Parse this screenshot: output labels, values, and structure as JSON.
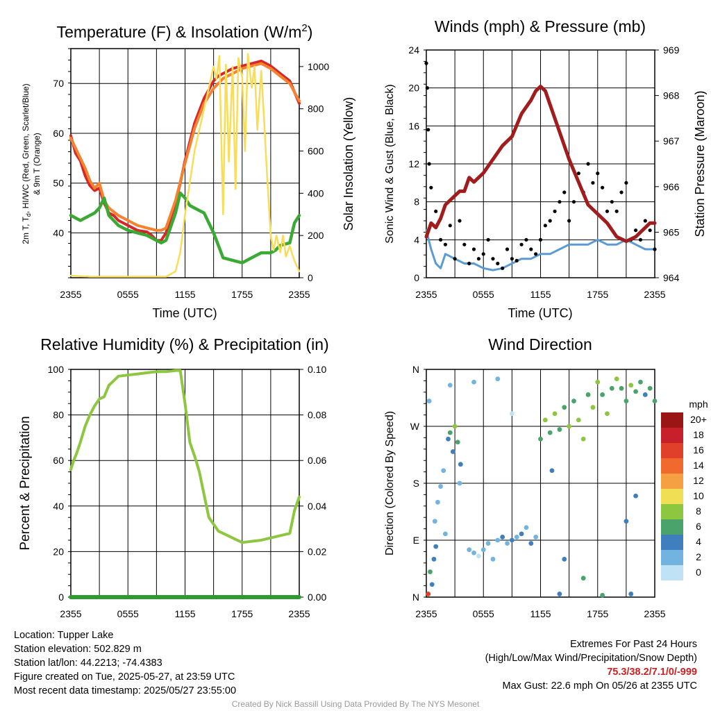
{
  "colors": {
    "red": "#d62728",
    "green": "#3aaa35",
    "orange": "#f4822e",
    "yellow": "#f7dd58",
    "blue": "#5b9bd5",
    "black": "#000000",
    "maroon": "#a11c1c",
    "rh": "#8dc63f",
    "precip": "#2e9b2e",
    "grid": "#000000"
  },
  "chart_data": [
    {
      "id": "temp",
      "type": "line",
      "title_main": "Temperature (F) & Insolation (W/m",
      "title_sup": "2",
      "title_close": ")",
      "xlabel": "Time (UTC)",
      "ylabel_lines": [
        "2m T, T",
        "d",
        ", HI/WC (Red, Green, Scarlet/Blue)",
        "& 9m T (Orange)"
      ],
      "y2label": "Solar Insolation (Yellow)",
      "xticks": [
        "2355",
        "0555",
        "1155",
        "1755",
        "2355"
      ],
      "xlim": [
        0,
        24
      ],
      "ylim": [
        31,
        77
      ],
      "y2lim": [
        0,
        1085
      ],
      "yticks": [
        40,
        50,
        60,
        70
      ],
      "y2ticks": [
        0,
        200,
        400,
        600,
        800,
        1000
      ],
      "grid": true,
      "series": [
        {
          "key": "temp_2m",
          "color": "red",
          "x": [
            0,
            0.5,
            1,
            1.5,
            2,
            2.5,
            3,
            3.5,
            4,
            4.5,
            5,
            6,
            7,
            8,
            8.5,
            9,
            9.5,
            10,
            11,
            11.5,
            12,
            13,
            14,
            15,
            15.5,
            16,
            17,
            18,
            19,
            20,
            21,
            22,
            23,
            24
          ],
          "y": [
            59.5,
            56,
            54.5,
            51.5,
            49.5,
            48.5,
            49,
            46,
            44,
            43.5,
            42.5,
            41.5,
            40.5,
            40.2,
            39.5,
            38.5,
            38.5,
            40,
            46,
            50,
            54.5,
            62,
            67,
            70.5,
            71.5,
            72,
            73,
            73.5,
            74,
            74.5,
            73.5,
            72,
            70.5,
            66
          ]
        },
        {
          "key": "temp_9m",
          "color": "orange",
          "x": [
            0,
            0.5,
            1,
            1.5,
            2,
            2.5,
            3,
            3.5,
            4,
            5,
            6,
            7,
            8,
            9,
            9.5,
            10,
            11,
            12,
            13,
            14,
            15,
            16,
            17,
            18,
            19,
            20,
            21,
            22,
            23,
            24
          ],
          "y": [
            59,
            57,
            55,
            53,
            50.5,
            49,
            50,
            46.5,
            45,
            43.5,
            42.5,
            41.5,
            41,
            40.5,
            40.5,
            41,
            46.5,
            54,
            61,
            66,
            69,
            71,
            72,
            73,
            73.5,
            74,
            73,
            71.5,
            70,
            66.5
          ]
        },
        {
          "key": "dewpoint",
          "color": "green",
          "x": [
            0,
            1,
            1.5,
            2,
            2.5,
            3,
            3.5,
            4,
            5,
            6,
            7,
            8,
            9,
            9.5,
            10,
            11,
            11.5,
            12,
            12.5,
            13,
            14,
            14.5,
            15,
            15.5,
            16,
            17,
            18,
            19,
            20,
            21,
            21.5,
            22,
            23,
            23.5,
            24
          ],
          "y": [
            43.5,
            42.5,
            43,
            43.5,
            44,
            45,
            47,
            43.5,
            41.5,
            40.5,
            40,
            39.5,
            38.5,
            38,
            38.5,
            44,
            48,
            47,
            45.5,
            45,
            44,
            42,
            40,
            37.5,
            35,
            34.5,
            34,
            35,
            36,
            36,
            36.5,
            37.5,
            38,
            42,
            43.5
          ]
        },
        {
          "key": "solar",
          "color": "yellow",
          "axis": "y2",
          "x": [
            0,
            2,
            4,
            6,
            8,
            9,
            10,
            11,
            11.5,
            12,
            13,
            14,
            14.5,
            15,
            15.3,
            15.6,
            16,
            16.3,
            16.6,
            17,
            17.3,
            17.6,
            18,
            18.3,
            18.6,
            19,
            19.3,
            19.6,
            20,
            20.3,
            20.6,
            21,
            21.3,
            21.6,
            22,
            22.3,
            22.6,
            23,
            23.5,
            24
          ],
          "y": [
            10,
            5,
            5,
            5,
            5,
            5,
            5,
            30,
            120,
            300,
            600,
            800,
            900,
            1000,
            940,
            1050,
            300,
            1010,
            550,
            1000,
            420,
            1040,
            950,
            600,
            1060,
            900,
            1000,
            700,
            980,
            750,
            500,
            200,
            130,
            200,
            120,
            200,
            100,
            150,
            80,
            30
          ]
        }
      ]
    },
    {
      "id": "wind",
      "type": "scatter",
      "title": "Winds (mph) & Pressure (mb)",
      "xlabel": "Time (UTC)",
      "ylabel": "Sonic Wind & Gust (Blue, Black)",
      "y2label": "Station Pressure (Maroon)",
      "xticks": [
        "2355",
        "0555",
        "1155",
        "1755",
        "2355"
      ],
      "xlim": [
        0,
        24
      ],
      "ylim": [
        0,
        24
      ],
      "y2lim": [
        964,
        969
      ],
      "yticks": [
        0,
        4,
        8,
        12,
        16,
        20,
        24
      ],
      "y2ticks": [
        964,
        965,
        966,
        967,
        968,
        969
      ],
      "grid": true,
      "series": [
        {
          "key": "sonic_wind",
          "color": "blue",
          "x": [
            0,
            0.5,
            1,
            1.5,
            2,
            3,
            4,
            5,
            6,
            7,
            8,
            9,
            10,
            11,
            12,
            13,
            14,
            15,
            16,
            17,
            18,
            19,
            20,
            21,
            22,
            23,
            24
          ],
          "y": [
            5,
            3,
            1.5,
            1,
            2.5,
            2,
            1.5,
            1.5,
            1,
            0.8,
            1,
            1.5,
            2,
            2,
            2.5,
            2.5,
            3,
            3.5,
            3.5,
            3.5,
            4,
            3.5,
            3.5,
            4,
            3.5,
            3,
            3
          ]
        },
        {
          "key": "gust",
          "color": "black",
          "x": [
            0,
            0.1,
            0.2,
            0.3,
            0.5,
            1,
            1.5,
            2,
            2.5,
            3,
            3.5,
            4,
            4.5,
            5,
            5.5,
            6,
            6.5,
            7,
            7.5,
            8,
            8.5,
            9,
            9.5,
            10,
            10.5,
            11,
            11.5,
            12,
            12.5,
            13,
            13.5,
            14,
            14.5,
            15,
            15.5,
            16,
            16.5,
            17,
            17.5,
            18,
            18.5,
            19,
            19.5,
            20,
            20.5,
            21,
            21.5,
            22,
            22.5,
            23,
            23.5,
            24
          ],
          "y": [
            22.6,
            20,
            15.6,
            12,
            9.5,
            7,
            4,
            3.5,
            5.5,
            2,
            6,
            3.5,
            1.5,
            3,
            2,
            2.5,
            4,
            2,
            1.5,
            1,
            3,
            2,
            1.8,
            3.5,
            4,
            3,
            2.5,
            4,
            5.5,
            6,
            7,
            8,
            9,
            6,
            8,
            11,
            9,
            12,
            10,
            11,
            9.5,
            7,
            8,
            7,
            9,
            10,
            4,
            5,
            4,
            6,
            5,
            3
          ]
        },
        {
          "key": "pressure",
          "color": "maroon",
          "axis": "y2",
          "x": [
            0,
            0.5,
            1,
            1.5,
            2,
            3,
            3.5,
            4,
            4.5,
            5,
            6,
            7,
            8,
            9,
            10,
            11,
            11.5,
            12,
            12.5,
            13,
            14,
            15,
            16,
            17,
            18,
            19,
            20,
            21,
            22,
            23,
            23.5,
            24
          ],
          "y": [
            964.9,
            965.2,
            965.1,
            965.3,
            965.6,
            965.8,
            965.9,
            965.9,
            966.2,
            966.1,
            966.3,
            966.6,
            966.9,
            967.1,
            967.6,
            967.9,
            968.1,
            968.2,
            968.1,
            967.8,
            967.2,
            966.6,
            966.1,
            965.6,
            965.4,
            965.2,
            964.9,
            964.8,
            964.9,
            965.1,
            965.2,
            965.2
          ]
        }
      ]
    },
    {
      "id": "rh",
      "type": "line",
      "title": "Relative Humidity (%) & Precipitation (in)",
      "ylabel": "Percent & Precipitation",
      "xticks": [
        "2355",
        "0555",
        "1155",
        "1755",
        "2355"
      ],
      "xlim": [
        0,
        24
      ],
      "ylim": [
        0,
        100
      ],
      "y2lim": [
        0,
        0.1
      ],
      "yticks": [
        0,
        20,
        40,
        60,
        80,
        100
      ],
      "y2ticks": [
        "0.00",
        "0.02",
        "0.04",
        "0.06",
        "0.08",
        "0.10"
      ],
      "grid": true,
      "series": [
        {
          "key": "rh",
          "color": "rh",
          "x": [
            0,
            0.3,
            0.6,
            1,
            1.5,
            2,
            2.5,
            3,
            3.5,
            4,
            4.5,
            5,
            6,
            7,
            8,
            9,
            10,
            11,
            11.5,
            12,
            12.5,
            13,
            13.5,
            14,
            14.5,
            15,
            15.5,
            16,
            17,
            18,
            19,
            20,
            21,
            22,
            23,
            23.5,
            24
          ],
          "y": [
            56,
            60,
            63,
            68,
            75,
            80,
            84,
            87,
            88,
            93,
            95,
            97,
            97.5,
            98,
            98.5,
            99,
            99,
            99.5,
            99.5,
            85,
            68,
            62,
            55,
            45,
            35,
            32,
            29,
            28,
            26,
            24,
            24.5,
            25,
            26,
            27,
            28,
            38,
            44
          ]
        },
        {
          "key": "precip",
          "color": "precip",
          "x": [
            0,
            24
          ],
          "y": [
            0,
            0
          ]
        }
      ]
    },
    {
      "id": "wdir",
      "type": "scatter",
      "title": "Wind Direction",
      "ylabel": "Direction (Colored By Speed)",
      "xticks": [
        "2355",
        "0555",
        "1155",
        "1755",
        "2355"
      ],
      "xlim": [
        0,
        24
      ],
      "ylim": [
        0,
        360
      ],
      "ytick_values": [
        0,
        90,
        180,
        270,
        360
      ],
      "yticks": [
        "N",
        "E",
        "S",
        "W",
        "N"
      ],
      "grid": true,
      "points": [
        [
          0.2,
          5,
          8
        ],
        [
          0.4,
          40,
          3
        ],
        [
          0.6,
          20,
          2
        ],
        [
          0.8,
          60,
          2
        ],
        [
          1,
          80,
          2
        ],
        [
          0.9,
          120,
          1
        ],
        [
          1.2,
          150,
          1
        ],
        [
          1.5,
          175,
          1
        ],
        [
          2,
          100,
          1
        ],
        [
          2.3,
          250,
          2
        ],
        [
          2.5,
          260,
          3
        ],
        [
          2.8,
          230,
          2
        ],
        [
          3,
          270,
          4
        ],
        [
          3.3,
          245,
          3
        ],
        [
          3.6,
          210,
          2
        ],
        [
          3.5,
          180,
          1
        ],
        [
          1.8,
          200,
          1
        ],
        [
          4.5,
          75,
          1
        ],
        [
          5,
          70,
          1
        ],
        [
          5.5,
          65,
          0
        ],
        [
          6,
          75,
          1
        ],
        [
          6.5,
          85,
          1
        ],
        [
          7,
          60,
          1
        ],
        [
          7.5,
          90,
          1
        ],
        [
          8,
          95,
          2
        ],
        [
          8.5,
          85,
          1
        ],
        [
          9,
          90,
          2
        ],
        [
          9.5,
          95,
          1
        ],
        [
          10,
          100,
          2
        ],
        [
          10.5,
          110,
          1
        ],
        [
          11,
          85,
          2
        ],
        [
          11.5,
          95,
          1
        ],
        [
          12,
          250,
          3
        ],
        [
          12.5,
          280,
          4
        ],
        [
          13,
          260,
          3
        ],
        [
          13.2,
          200,
          2
        ],
        [
          13.5,
          290,
          4
        ],
        [
          14,
          265,
          3
        ],
        [
          14.5,
          300,
          3
        ],
        [
          15,
          270,
          4
        ],
        [
          15.5,
          310,
          3
        ],
        [
          16,
          280,
          4
        ],
        [
          16.5,
          250,
          4
        ],
        [
          17,
          320,
          3
        ],
        [
          17.5,
          300,
          4
        ],
        [
          18,
          340,
          4
        ],
        [
          18.5,
          320,
          3
        ],
        [
          19,
          290,
          4
        ],
        [
          19.5,
          330,
          3
        ],
        [
          20,
          345,
          4
        ],
        [
          20.5,
          330,
          3
        ],
        [
          21,
          310,
          3
        ],
        [
          21.5,
          335,
          4
        ],
        [
          22,
          325,
          3
        ],
        [
          22.5,
          340,
          3
        ],
        [
          23,
          320,
          2
        ],
        [
          23.5,
          330,
          3
        ],
        [
          24,
          310,
          3
        ],
        [
          5,
          340,
          1
        ],
        [
          7.5,
          345,
          1
        ],
        [
          9,
          290,
          0
        ],
        [
          14,
          5,
          2
        ],
        [
          18.5,
          3,
          3
        ],
        [
          21.5,
          5,
          2
        ],
        [
          21,
          120,
          2
        ],
        [
          22,
          160,
          2
        ],
        [
          0.3,
          310,
          1
        ],
        [
          2.5,
          335,
          1
        ],
        [
          14.5,
          60,
          2
        ],
        [
          16.5,
          30,
          3
        ]
      ],
      "legend": {
        "title": "mph",
        "labels": [
          "20+",
          "18",
          "16",
          "14",
          "12",
          "10",
          "8",
          "6",
          "4",
          "2",
          "0"
        ],
        "colors": [
          "#9b1515",
          "#c8202a",
          "#e0402a",
          "#ef6a2c",
          "#f6a044",
          "#f0df55",
          "#8dc63f",
          "#4aa36a",
          "#3f7fbd",
          "#72b3e0",
          "#bfe2f5"
        ]
      }
    }
  ],
  "info": {
    "location": "Location: Tupper Lake",
    "elevation": "Station elevation: 502.829 m",
    "latlon": "Station lat/lon: 44.2213; -74.4383",
    "created": "Figure created on Tue, 2025-05-27, at 23:59 UTC",
    "recent": "Most recent data timestamp: 2025/05/27 23:55:00"
  },
  "extremes": {
    "title": "Extremes For Past 24 Hours",
    "subtitle": "(High/Low/Max Wind/Precipitation/Snow Depth)",
    "values": "75.3/38.2/7.1/0/-999",
    "gust": "Max Gust: 22.6 mph On 05/26 at 2355 UTC"
  },
  "credit": "Created By Nick Bassill Using Data Provided By The NYS Mesonet"
}
